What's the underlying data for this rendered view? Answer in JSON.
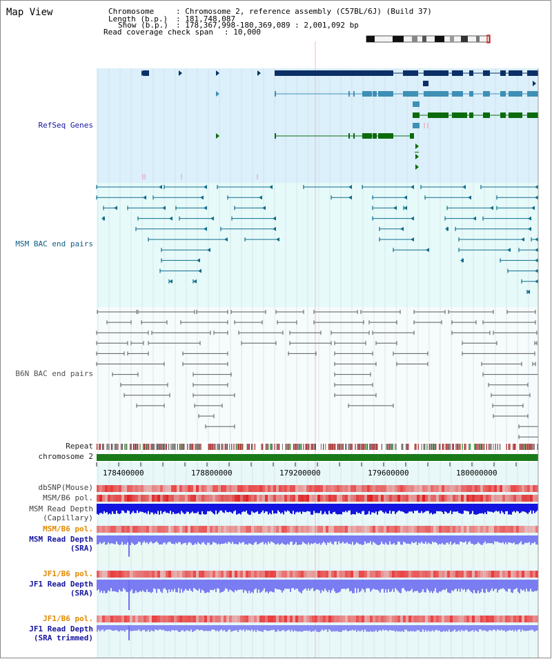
{
  "title": "Map View",
  "header": {
    "chromosome_key": "Chromosome",
    "chromosome_value": ": Chromosome 2, reference assembly (C57BL/6J) (Build 37)",
    "length_key": "Length (b.p.)",
    "length_value": ": 181,748,087",
    "show_key": "Show (b.p.)",
    "show_value": ": 178,367,998-180,369,089 : 2,001,092 bp",
    "coverage_key": "Read coverage check span",
    "coverage_value": ": 10,000"
  },
  "tracks": {
    "refseq": "RefSeq Genes",
    "msm_bac": "MSM BAC end pairs",
    "b6n_bac": "B6N BAC end pairs",
    "repeat": "Repeat",
    "chromosome": "chromosome 2",
    "dbsnp": "dbSNP(Mouse)",
    "msm_b6_pol_1": "MSM/B6 pol.",
    "msm_depth_cap": "MSM Read Depth\n(Capillary)",
    "msm_b6_pol_2": "MSM/B6 pol.",
    "msm_depth_sra": "MSM Read Depth\n(SRA)",
    "jf1_b6_pol_1": "JF1/B6 pol.",
    "jf1_depth_sra": "JF1 Read Depth\n(SRA)",
    "jf1_b6_pol_2": "JF1/B6 pol.",
    "jf1_depth_trim": "JF1 Read Depth\n(SRA trimmed)"
  },
  "axis": {
    "ticks": [
      "178400000",
      "178800000",
      "179200000",
      "179600000",
      "180000000"
    ]
  },
  "colors": {
    "refseq_bg": "#dbf0fb",
    "bac_bg": "#e6fafa",
    "b6n_bg": "#f6fbfb",
    "lower_bg": "#eaf9f4",
    "chromosome_bar": "#1a7a1a",
    "msm_label": "#0b5c86",
    "refseq_label": "#1414a0",
    "pol_label": "#e08a00",
    "depth_label": "#1414a0",
    "gray_label": "#404040"
  }
}
